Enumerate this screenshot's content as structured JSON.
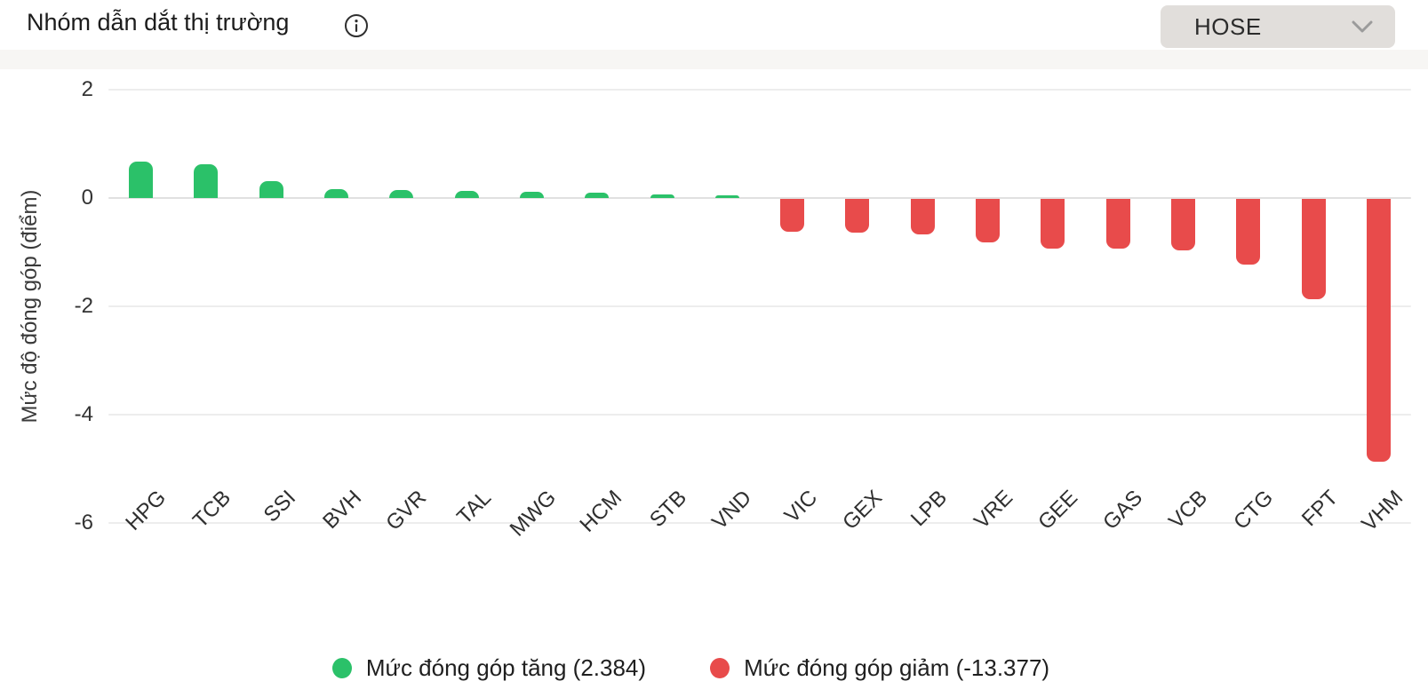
{
  "header": {
    "title": "Nhóm dẫn dắt thị trường",
    "info_icon": "info-icon",
    "exchange_selector": {
      "value": "HOSE",
      "chevron_icon": "chevron-down-icon"
    }
  },
  "colors": {
    "positive": "#2bc169",
    "negative": "#e84b4b",
    "gridline": "#ededed",
    "zero_line": "#e0e0e0"
  },
  "chart_data": {
    "type": "bar",
    "title": "Nhóm dẫn dắt thị trường",
    "xlabel": "",
    "ylabel": "Mức độ đóng góp (điểm)",
    "yticks": [
      2,
      0,
      -2,
      -4,
      -6
    ],
    "ylim": [
      -6.6,
      2.4
    ],
    "grid": true,
    "legend_position": "bottom",
    "categories": [
      "HPG",
      "TCB",
      "SSI",
      "BVH",
      "GVR",
      "TAL",
      "MWG",
      "HCM",
      "STB",
      "VND",
      "VIC",
      "GEX",
      "LPB",
      "VRE",
      "GEE",
      "GAS",
      "VCB",
      "CTG",
      "FPT",
      "VHM"
    ],
    "values": [
      0.68,
      0.62,
      0.31,
      0.17,
      0.14,
      0.13,
      0.11,
      0.1,
      0.07,
      0.055,
      -0.6,
      -0.62,
      -0.66,
      -0.8,
      -0.91,
      -0.92,
      -0.95,
      -1.22,
      -1.85,
      -4.85
    ],
    "positive_total": "2.384",
    "negative_total": "-13.377",
    "legend": [
      {
        "label": "Mức đóng góp tăng (2.384)",
        "series": "positive"
      },
      {
        "label": "Mức đóng góp giảm (-13.377)",
        "series": "negative"
      }
    ]
  }
}
